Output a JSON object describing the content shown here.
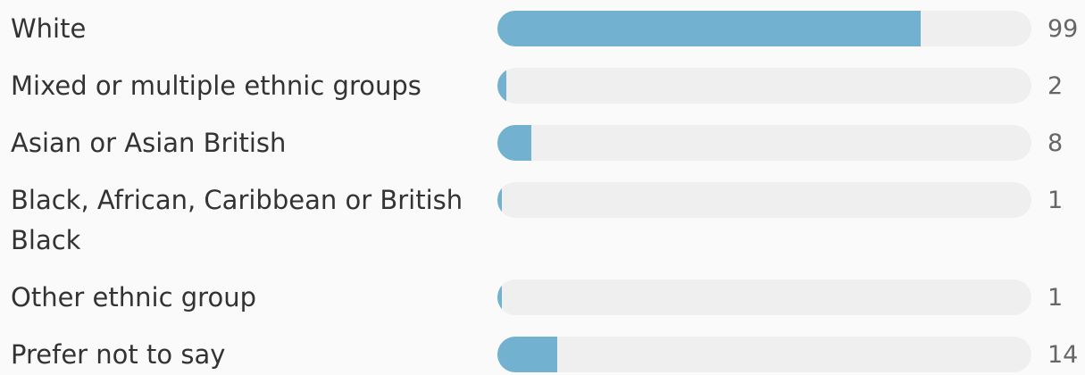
{
  "chart_data": {
    "type": "bar",
    "orientation": "horizontal",
    "categories": [
      "White",
      "Mixed or multiple ethnic groups",
      "Asian or Asian British",
      "Black, African, Caribbean or British Black",
      "Other ethnic group",
      "Prefer not to say"
    ],
    "values": [
      99,
      2,
      8,
      1,
      1,
      14
    ],
    "color": "#72b1cf"
  }
}
